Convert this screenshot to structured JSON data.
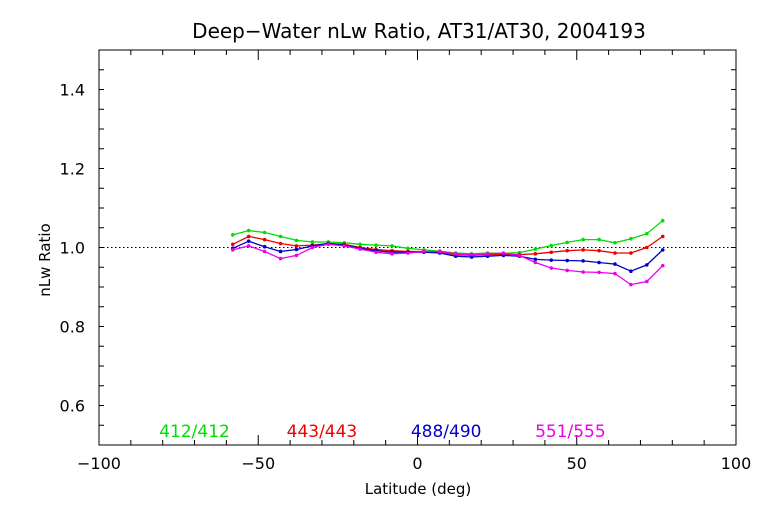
{
  "chart_data": {
    "type": "line",
    "title": "Deep−Water nLw Ratio, AT31/AT30, 2004193",
    "xlabel": "Latitude (deg)",
    "ylabel": "nLw Ratio",
    "xlim": [
      -100,
      100
    ],
    "ylim": [
      0.5,
      1.5
    ],
    "xticks": [
      -100,
      -50,
      0,
      50,
      100
    ],
    "xtick_labels": [
      "−100",
      "−50",
      "0",
      "50",
      "100"
    ],
    "yticks": [
      0.6,
      0.8,
      1.0,
      1.2,
      1.4
    ],
    "ytick_labels": [
      "0.6",
      "0.8",
      "1.0",
      "1.2",
      "1.4"
    ],
    "reference_line": 1.0,
    "grid": false,
    "x": [
      -58,
      -53,
      -48,
      -43,
      -38,
      -33,
      -28,
      -23,
      -18,
      -13,
      -8,
      -3,
      2,
      7,
      12,
      17,
      22,
      27,
      32,
      37,
      42,
      47,
      52,
      57,
      62,
      67,
      72,
      77
    ],
    "series": [
      {
        "name": "412/412",
        "color": "#00dd00",
        "values": [
          1.032,
          1.043,
          1.038,
          1.028,
          1.018,
          1.014,
          1.014,
          1.012,
          1.008,
          1.006,
          1.004,
          0.998,
          0.994,
          0.991,
          0.986,
          0.984,
          0.986,
          0.985,
          0.987,
          0.996,
          1.005,
          1.013,
          1.02,
          1.02,
          1.012,
          1.022,
          1.035,
          1.068
        ]
      },
      {
        "name": "443/443",
        "color": "#ee0000",
        "values": [
          1.008,
          1.028,
          1.02,
          1.01,
          1.004,
          1.006,
          1.01,
          1.008,
          1.0,
          0.995,
          0.992,
          0.99,
          0.99,
          0.988,
          0.982,
          0.98,
          0.982,
          0.983,
          0.982,
          0.984,
          0.988,
          0.992,
          0.994,
          0.992,
          0.986,
          0.986,
          1.0,
          1.028
        ]
      },
      {
        "name": "488/490",
        "color": "#0000cc",
        "values": [
          0.998,
          1.016,
          1.002,
          0.99,
          0.995,
          1.004,
          1.01,
          1.006,
          0.998,
          0.992,
          0.988,
          0.988,
          0.988,
          0.986,
          0.978,
          0.976,
          0.978,
          0.98,
          0.978,
          0.97,
          0.968,
          0.967,
          0.966,
          0.962,
          0.958,
          0.94,
          0.956,
          0.994
        ]
      },
      {
        "name": "551/555",
        "color": "#ee00ee",
        "values": [
          0.994,
          1.004,
          0.99,
          0.972,
          0.98,
          1.0,
          1.008,
          1.004,
          0.996,
          0.988,
          0.984,
          0.986,
          0.99,
          0.99,
          0.984,
          0.982,
          0.984,
          0.986,
          0.98,
          0.962,
          0.948,
          0.942,
          0.938,
          0.937,
          0.934,
          0.906,
          0.914,
          0.954
        ]
      }
    ],
    "legend_position": "bottom, inside plot"
  }
}
